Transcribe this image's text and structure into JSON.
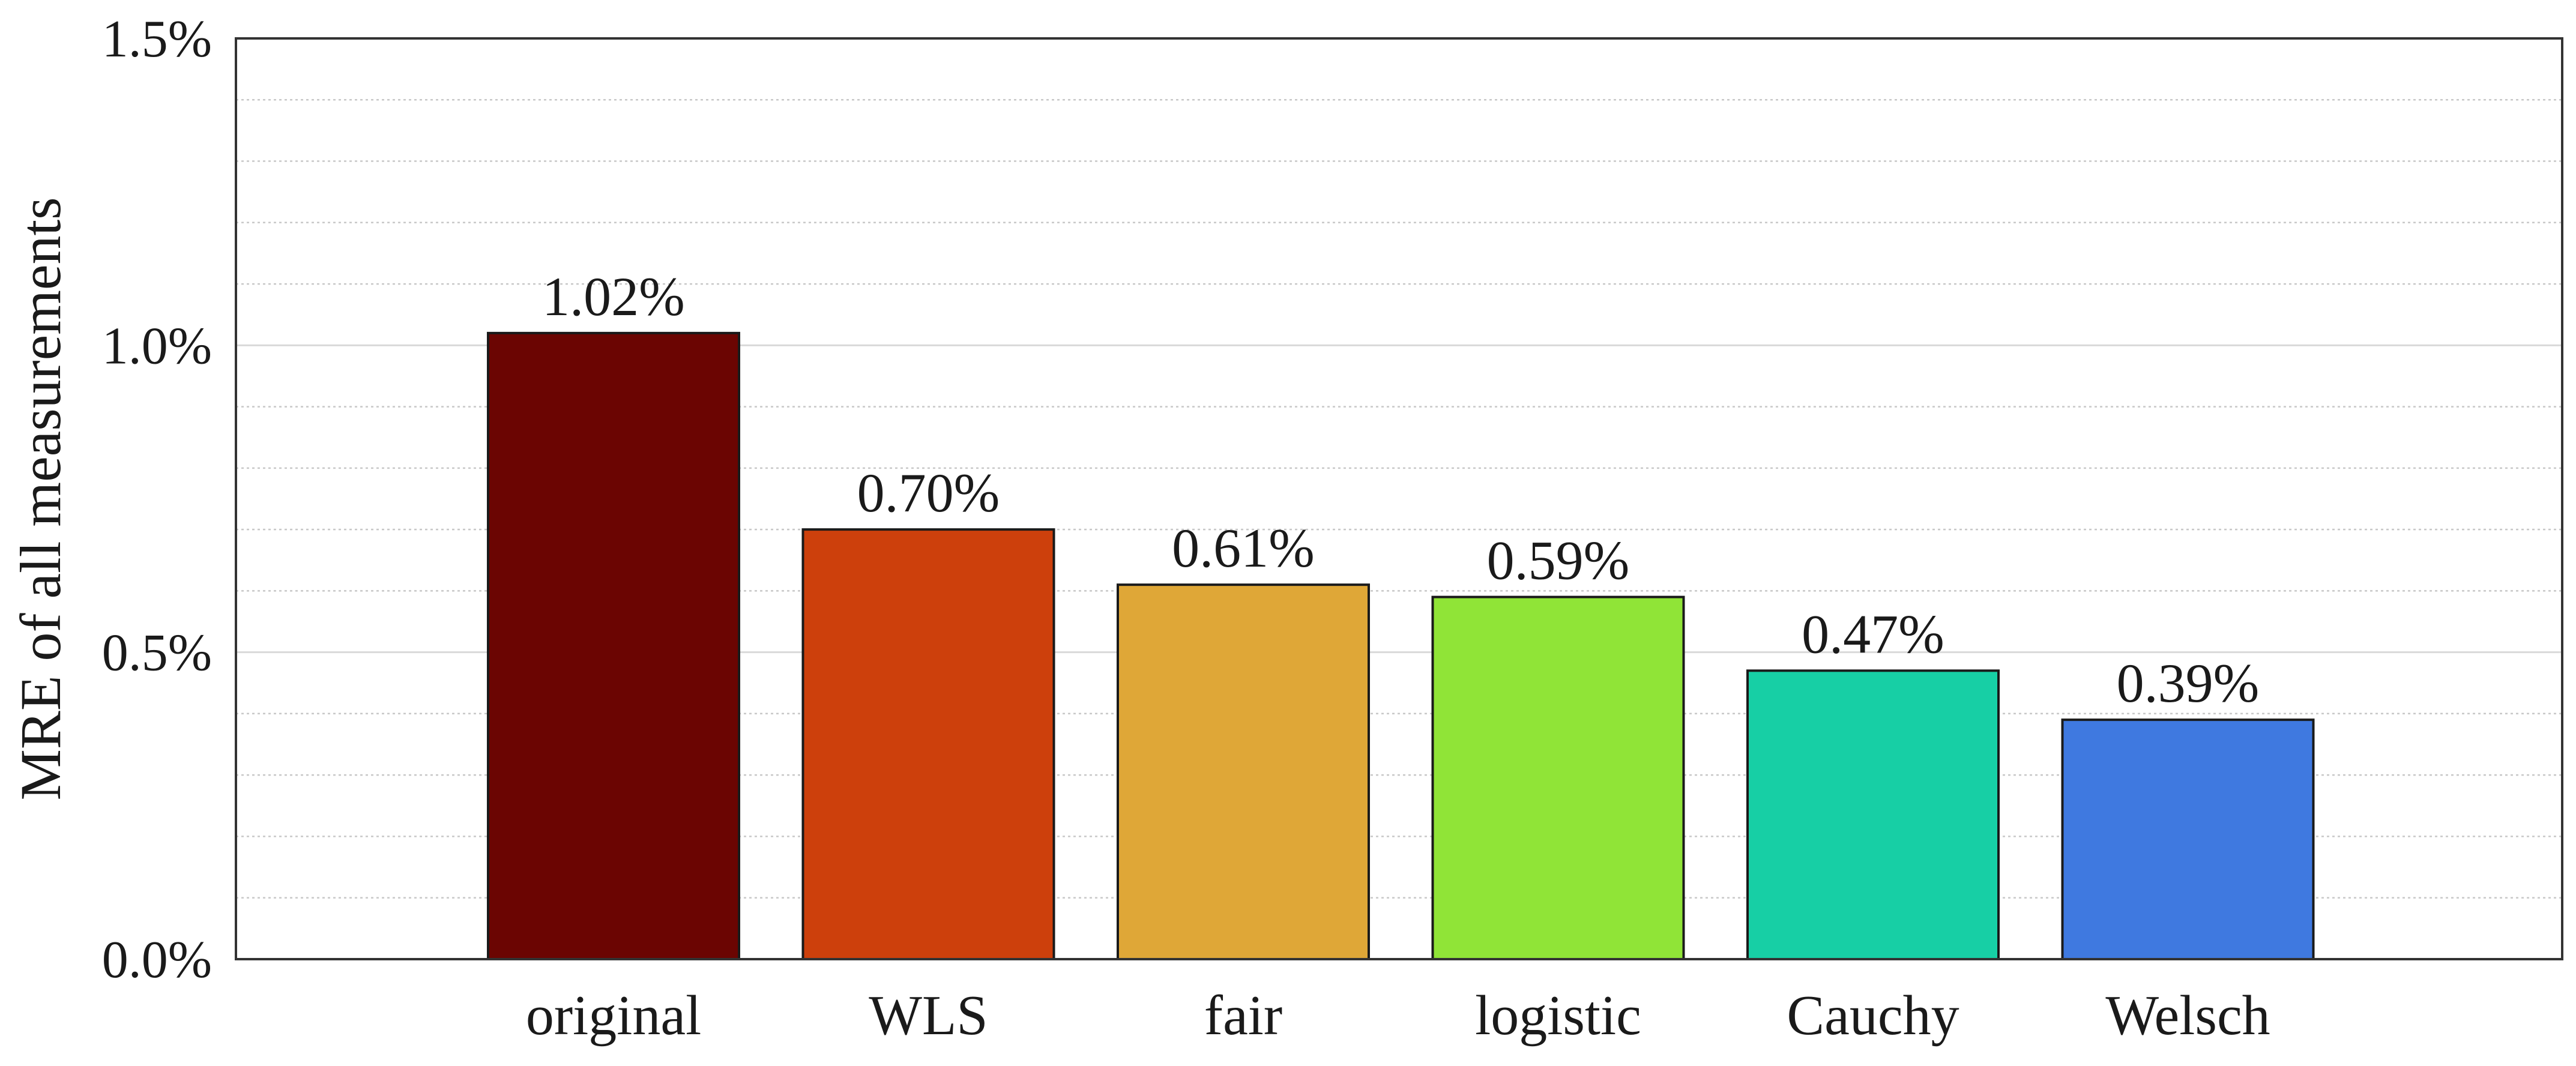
{
  "chart_data": {
    "type": "bar",
    "title": "",
    "xlabel": "",
    "ylabel": "MRE of all measurements",
    "ylim": [
      0,
      1.5
    ],
    "yticks": [
      0,
      0.5,
      1.0,
      1.5
    ],
    "ytick_labels": [
      "0.0%",
      "0.5%",
      "1.0%",
      "1.5%"
    ],
    "minor_grid_step": 0.1,
    "grid": true,
    "categories": [
      "original",
      "WLS",
      "fair",
      "logistic",
      "Cauchy",
      "Welsch"
    ],
    "values": [
      1.02,
      0.7,
      0.61,
      0.59,
      0.47,
      0.39
    ],
    "value_labels": [
      "1.02%",
      "0.70%",
      "0.61%",
      "0.59%",
      "0.47%",
      "0.39%"
    ],
    "colors": [
      "#6b0502",
      "#cd400c",
      "#dfa737",
      "#90e437",
      "#17cfa5",
      "#3f79e0"
    ],
    "unit": "%"
  }
}
